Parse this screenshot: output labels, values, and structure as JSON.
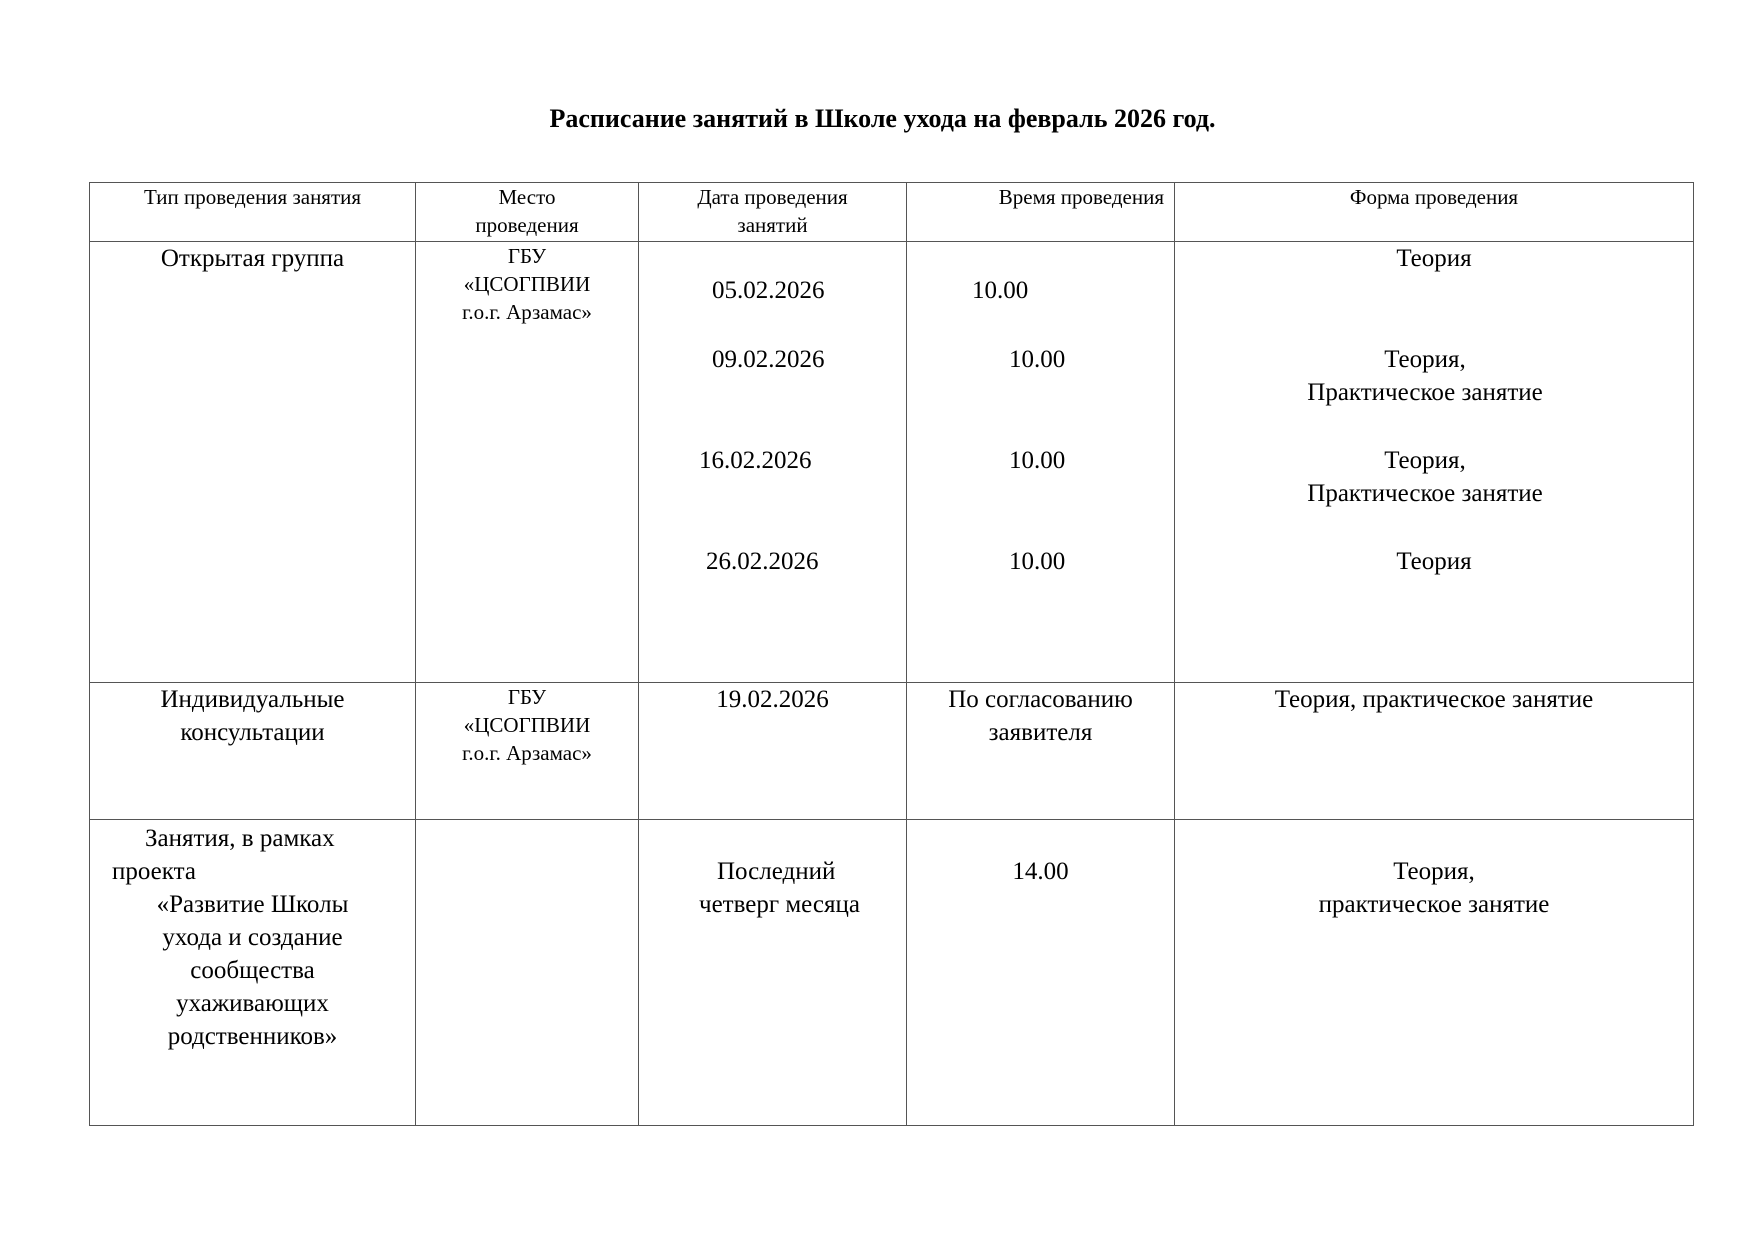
{
  "title": "Расписание занятий в Школе ухода на февраль 2026 год.",
  "table": {
    "headers": [
      "Тип проведения занятия",
      "Место проведения",
      "Дата проведения занятий",
      "Время проведения",
      "Форма проведения"
    ],
    "rows": [
      {
        "type": "Открытая группа",
        "place": [
          "ГБУ",
          "«ЦСОГПВИИ",
          "г.о.г. Арзамас»"
        ],
        "sessions": [
          {
            "date": "05.02.2026",
            "time": "10.00",
            "form": [
              "Теория"
            ]
          },
          {
            "date": "09.02.2026",
            "time": "10.00",
            "form": [
              "Теория,",
              "Практическое занятие"
            ]
          },
          {
            "date": "16.02.2026",
            "time": "10.00",
            "form": [
              "Теория,",
              "Практическое занятие"
            ]
          },
          {
            "date": "26.02.2026",
            "time": "10.00",
            "form": [
              "Теория"
            ]
          }
        ]
      },
      {
        "type": [
          "Индивидуальные",
          "консультации"
        ],
        "place": [
          "ГБУ",
          "«ЦСОГПВИИ",
          "г.о.г. Арзамас»"
        ],
        "date": "19.02.2026",
        "time": [
          "По согласованию",
          "заявителя"
        ],
        "form": "Теория, практическое занятие"
      },
      {
        "type": [
          "Занятия, в рамках",
          "проекта",
          "«Развитие Школы",
          "ухода и создание",
          "сообщества",
          "ухаживающих",
          "родственников»"
        ],
        "place": "",
        "date": [
          "Последний",
          "четверг месяца"
        ],
        "time": "14.00",
        "form": [
          "Теория,",
          "практическое занятие"
        ]
      }
    ]
  }
}
